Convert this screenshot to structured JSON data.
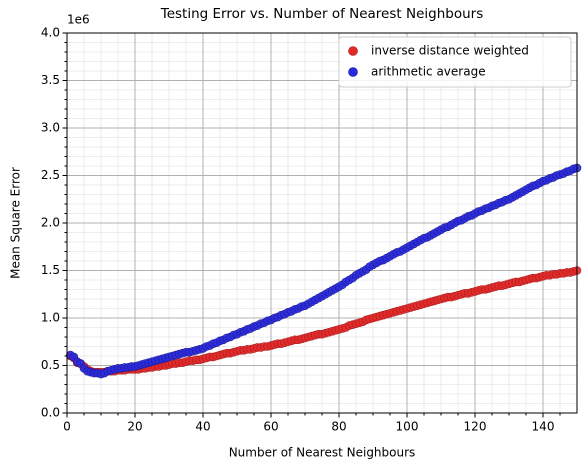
{
  "chart_data": {
    "type": "scatter",
    "title": "Testing Error vs. Number of Nearest Neighbours",
    "x_label": "Number of Nearest Neighbours",
    "y_label": "Mean Square Error",
    "y_offset_label": "1e6",
    "x": [
      1,
      2,
      3,
      4,
      5,
      6,
      7,
      8,
      9,
      10,
      11,
      12,
      13,
      14,
      15,
      16,
      17,
      18,
      19,
      20,
      21,
      22,
      23,
      24,
      25,
      26,
      27,
      28,
      29,
      30,
      31,
      32,
      33,
      34,
      35,
      36,
      37,
      38,
      39,
      40,
      41,
      42,
      43,
      44,
      45,
      46,
      47,
      48,
      49,
      50,
      51,
      52,
      53,
      54,
      55,
      56,
      57,
      58,
      59,
      60,
      61,
      62,
      63,
      64,
      65,
      66,
      67,
      68,
      69,
      70,
      71,
      72,
      73,
      74,
      75,
      76,
      77,
      78,
      79,
      80,
      81,
      82,
      83,
      84,
      85,
      86,
      87,
      88,
      89,
      90,
      91,
      92,
      93,
      94,
      95,
      96,
      97,
      98,
      99,
      100,
      101,
      102,
      103,
      104,
      105,
      106,
      107,
      108,
      109,
      110,
      111,
      112,
      113,
      114,
      115,
      116,
      117,
      118,
      119,
      120,
      121,
      122,
      123,
      124,
      125,
      126,
      127,
      128,
      129,
      130,
      131,
      132,
      133,
      134,
      135,
      136,
      137,
      138,
      139,
      140,
      141,
      142,
      143,
      144,
      145,
      146,
      147,
      148,
      149,
      150
    ],
    "series": [
      {
        "name": "inverse distance weighted",
        "color": "#e02a2a",
        "edge": "#b01818",
        "values": [
          0.6,
          0.58,
          0.53,
          0.52,
          0.49,
          0.46,
          0.44,
          0.43,
          0.43,
          0.43,
          0.43,
          0.44,
          0.44,
          0.44,
          0.45,
          0.45,
          0.45,
          0.46,
          0.46,
          0.46,
          0.46,
          0.47,
          0.47,
          0.48,
          0.48,
          0.49,
          0.49,
          0.5,
          0.5,
          0.51,
          0.52,
          0.52,
          0.53,
          0.53,
          0.54,
          0.55,
          0.55,
          0.56,
          0.56,
          0.57,
          0.58,
          0.59,
          0.59,
          0.6,
          0.61,
          0.62,
          0.63,
          0.63,
          0.64,
          0.65,
          0.66,
          0.66,
          0.67,
          0.67,
          0.68,
          0.69,
          0.69,
          0.7,
          0.7,
          0.71,
          0.72,
          0.73,
          0.73,
          0.74,
          0.75,
          0.76,
          0.77,
          0.77,
          0.78,
          0.79,
          0.8,
          0.81,
          0.82,
          0.83,
          0.83,
          0.84,
          0.85,
          0.86,
          0.87,
          0.88,
          0.89,
          0.9,
          0.92,
          0.93,
          0.94,
          0.95,
          0.96,
          0.98,
          0.99,
          1.0,
          1.01,
          1.02,
          1.03,
          1.04,
          1.05,
          1.06,
          1.07,
          1.08,
          1.09,
          1.1,
          1.11,
          1.12,
          1.13,
          1.14,
          1.15,
          1.16,
          1.17,
          1.18,
          1.19,
          1.2,
          1.21,
          1.22,
          1.22,
          1.23,
          1.24,
          1.25,
          1.26,
          1.26,
          1.27,
          1.28,
          1.29,
          1.3,
          1.3,
          1.31,
          1.32,
          1.33,
          1.34,
          1.34,
          1.35,
          1.36,
          1.37,
          1.38,
          1.38,
          1.39,
          1.4,
          1.41,
          1.42,
          1.42,
          1.43,
          1.44,
          1.45,
          1.45,
          1.46,
          1.46,
          1.47,
          1.47,
          1.48,
          1.48,
          1.49,
          1.5
        ]
      },
      {
        "name": "arithmetic average",
        "color": "#2a2ad8",
        "edge": "#1a1aa0",
        "values": [
          0.61,
          0.59,
          0.54,
          0.52,
          0.47,
          0.44,
          0.43,
          0.42,
          0.42,
          0.41,
          0.42,
          0.44,
          0.45,
          0.46,
          0.47,
          0.47,
          0.48,
          0.48,
          0.49,
          0.49,
          0.5,
          0.51,
          0.52,
          0.53,
          0.54,
          0.55,
          0.56,
          0.57,
          0.58,
          0.59,
          0.6,
          0.61,
          0.62,
          0.63,
          0.64,
          0.64,
          0.65,
          0.66,
          0.67,
          0.68,
          0.7,
          0.71,
          0.73,
          0.74,
          0.76,
          0.77,
          0.79,
          0.8,
          0.82,
          0.83,
          0.85,
          0.86,
          0.88,
          0.89,
          0.91,
          0.92,
          0.94,
          0.95,
          0.97,
          0.98,
          1.0,
          1.01,
          1.03,
          1.04,
          1.06,
          1.07,
          1.09,
          1.1,
          1.12,
          1.13,
          1.15,
          1.17,
          1.19,
          1.21,
          1.23,
          1.25,
          1.27,
          1.29,
          1.31,
          1.33,
          1.35,
          1.38,
          1.4,
          1.42,
          1.45,
          1.47,
          1.49,
          1.51,
          1.54,
          1.56,
          1.58,
          1.6,
          1.61,
          1.63,
          1.65,
          1.67,
          1.69,
          1.7,
          1.72,
          1.74,
          1.76,
          1.78,
          1.8,
          1.82,
          1.84,
          1.85,
          1.87,
          1.89,
          1.91,
          1.93,
          1.95,
          1.96,
          1.98,
          2.0,
          2.02,
          2.03,
          2.05,
          2.07,
          2.08,
          2.1,
          2.12,
          2.13,
          2.15,
          2.16,
          2.18,
          2.19,
          2.21,
          2.22,
          2.24,
          2.25,
          2.27,
          2.29,
          2.31,
          2.33,
          2.35,
          2.37,
          2.39,
          2.4,
          2.42,
          2.44,
          2.45,
          2.47,
          2.48,
          2.5,
          2.51,
          2.52,
          2.54,
          2.55,
          2.57,
          2.58
        ]
      }
    ],
    "xlim": [
      0,
      150
    ],
    "ylim": [
      0,
      4
    ],
    "xticks": [
      0,
      20,
      40,
      60,
      80,
      100,
      120,
      140
    ],
    "yticks": [
      {
        "value": 0,
        "label": "0.0"
      },
      0.5,
      {
        "value": 1,
        "label": "1.0"
      },
      1.5,
      {
        "value": 2,
        "label": "2.0"
      },
      2.5,
      {
        "value": 3,
        "label": "3.0"
      },
      3.5,
      {
        "value": 4,
        "label": "4.0"
      }
    ],
    "xminor": [
      5,
      10,
      15,
      25,
      30,
      35,
      45,
      50,
      55,
      65,
      70,
      75,
      85,
      90,
      95,
      105,
      110,
      115,
      125,
      130,
      135,
      145
    ],
    "yminor": [
      0.1,
      0.2,
      0.3,
      0.4,
      0.6,
      0.7,
      0.8,
      0.9,
      1.1,
      1.2,
      1.3,
      1.4,
      1.6,
      1.7,
      1.8,
      1.9,
      2.1,
      2.2,
      2.3,
      2.4,
      2.6,
      2.7,
      2.8,
      2.9,
      3.1,
      3.2,
      3.3,
      3.4,
      3.6,
      3.7,
      3.8,
      3.9
    ],
    "grid": true,
    "legend": "upper right"
  }
}
